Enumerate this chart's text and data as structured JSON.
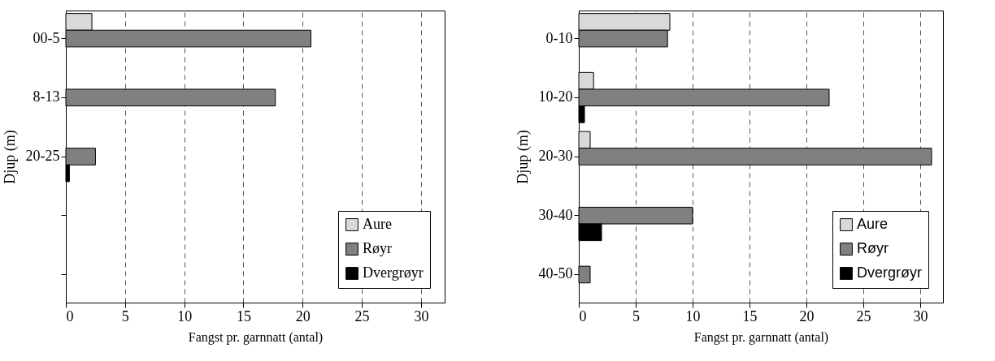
{
  "chart_data": [
    {
      "type": "bar",
      "orientation": "horizontal",
      "categories": [
        "00-5",
        "8-13",
        "20-25",
        null,
        null
      ],
      "xlabel": "Fangst pr. garnnatt (antal)",
      "ylabel": "Djup (m)",
      "xlim": [
        0,
        32
      ],
      "xticks": [
        0,
        5,
        10,
        15,
        20,
        25,
        30
      ],
      "grid": "x",
      "legend": "bottom right",
      "series": [
        {
          "name": "Aure",
          "color": "#d9d9d9",
          "values": [
            2.2,
            0,
            0,
            0,
            0
          ]
        },
        {
          "name": "Røyr",
          "color": "#808080",
          "values": [
            20.7,
            17.7,
            2.5,
            0,
            0
          ]
        },
        {
          "name": "Dvergrøyr",
          "color": "#000000",
          "values": [
            0,
            0,
            0.3,
            0,
            0
          ]
        }
      ]
    },
    {
      "type": "bar",
      "orientation": "horizontal",
      "categories": [
        "0-10",
        "10-20",
        "20-30",
        "30-40",
        "40-50"
      ],
      "xlabel": "Fangst pr. garnnatt (antal)",
      "ylabel": "Djup (m)",
      "xlim": [
        0,
        32
      ],
      "xticks": [
        0,
        5,
        10,
        15,
        20,
        25,
        30
      ],
      "grid": "x",
      "legend": "bottom right",
      "series": [
        {
          "name": "Aure",
          "color": "#d9d9d9",
          "values": [
            8.0,
            1.3,
            1.0,
            0,
            0
          ]
        },
        {
          "name": "Røyr",
          "color": "#808080",
          "values": [
            7.8,
            22,
            31,
            10,
            1.0
          ]
        },
        {
          "name": "Dvergrøyr",
          "color": "#000000",
          "values": [
            0,
            0.5,
            0,
            2.0,
            0
          ]
        }
      ]
    }
  ]
}
